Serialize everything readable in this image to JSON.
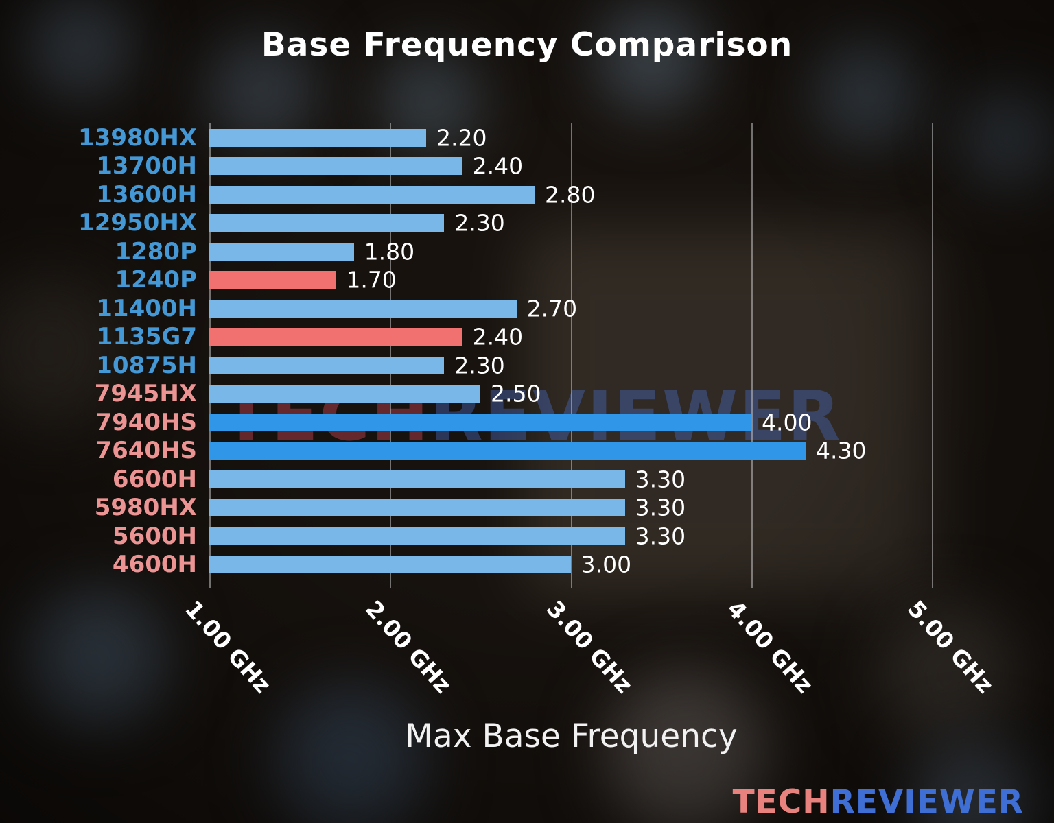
{
  "title": "Base Frequency Comparison",
  "xlabel": "Max Base Frequency",
  "watermark": {
    "tech": "TECH",
    "reviewer": "REVIEWER"
  },
  "logo": {
    "tech": "TECH",
    "reviewer": "REVIEWER"
  },
  "colors": {
    "background": "#17120e",
    "bar_light_blue": "#79b7e9",
    "bar_dark_blue": "#2f96e8",
    "bar_red": "#f17070",
    "label_intel_blue": "#4598d6",
    "label_amd_salmon": "#ec9494",
    "value_text": "#ffffff",
    "gridline": "#c3c3c3"
  },
  "chart_data": {
    "type": "bar",
    "orientation": "horizontal",
    "title": "Base Frequency Comparison",
    "xlabel": "Max Base Frequency",
    "unit": "GHz",
    "xlim": [
      1.0,
      5.5
    ],
    "grid": true,
    "legend": false,
    "x_ticks": [
      {
        "value": 1.0,
        "label": "1.00 GHz"
      },
      {
        "value": 2.0,
        "label": "2.00 GHz"
      },
      {
        "value": 3.0,
        "label": "3.00 GHz"
      },
      {
        "value": 4.0,
        "label": "4.00 GHz"
      },
      {
        "value": 5.0,
        "label": "5.00 GHz"
      }
    ],
    "bars": [
      {
        "category": "13980HX",
        "value": 2.2,
        "value_label": "2.20",
        "bar_color": "#79b7e9",
        "label_color": "#4598d6"
      },
      {
        "category": "13700H",
        "value": 2.4,
        "value_label": "2.40",
        "bar_color": "#79b7e9",
        "label_color": "#4598d6"
      },
      {
        "category": "13600H",
        "value": 2.8,
        "value_label": "2.80",
        "bar_color": "#79b7e9",
        "label_color": "#4598d6"
      },
      {
        "category": "12950HX",
        "value": 2.3,
        "value_label": "2.30",
        "bar_color": "#79b7e9",
        "label_color": "#4598d6"
      },
      {
        "category": "1280P",
        "value": 1.8,
        "value_label": "1.80",
        "bar_color": "#79b7e9",
        "label_color": "#4598d6"
      },
      {
        "category": "1240P",
        "value": 1.7,
        "value_label": "1.70",
        "bar_color": "#f17070",
        "label_color": "#4598d6"
      },
      {
        "category": "11400H",
        "value": 2.7,
        "value_label": "2.70",
        "bar_color": "#79b7e9",
        "label_color": "#4598d6"
      },
      {
        "category": "1135G7",
        "value": 2.4,
        "value_label": "2.40",
        "bar_color": "#f17070",
        "label_color": "#4598d6"
      },
      {
        "category": "10875H",
        "value": 2.3,
        "value_label": "2.30",
        "bar_color": "#79b7e9",
        "label_color": "#4598d6"
      },
      {
        "category": "7945HX",
        "value": 2.5,
        "value_label": "2.50",
        "bar_color": "#79b7e9",
        "label_color": "#ec9494"
      },
      {
        "category": "7940HS",
        "value": 4.0,
        "value_label": "4.00",
        "bar_color": "#2f96e8",
        "label_color": "#ec9494"
      },
      {
        "category": "7640HS",
        "value": 4.3,
        "value_label": "4.30",
        "bar_color": "#2f96e8",
        "label_color": "#ec9494"
      },
      {
        "category": "6600H",
        "value": 3.3,
        "value_label": "3.30",
        "bar_color": "#79b7e9",
        "label_color": "#ec9494"
      },
      {
        "category": "5980HX",
        "value": 3.3,
        "value_label": "3.30",
        "bar_color": "#79b7e9",
        "label_color": "#ec9494"
      },
      {
        "category": "5600H",
        "value": 3.3,
        "value_label": "3.30",
        "bar_color": "#79b7e9",
        "label_color": "#ec9494"
      },
      {
        "category": "4600H",
        "value": 3.0,
        "value_label": "3.00",
        "bar_color": "#79b7e9",
        "label_color": "#ec9494"
      }
    ]
  }
}
